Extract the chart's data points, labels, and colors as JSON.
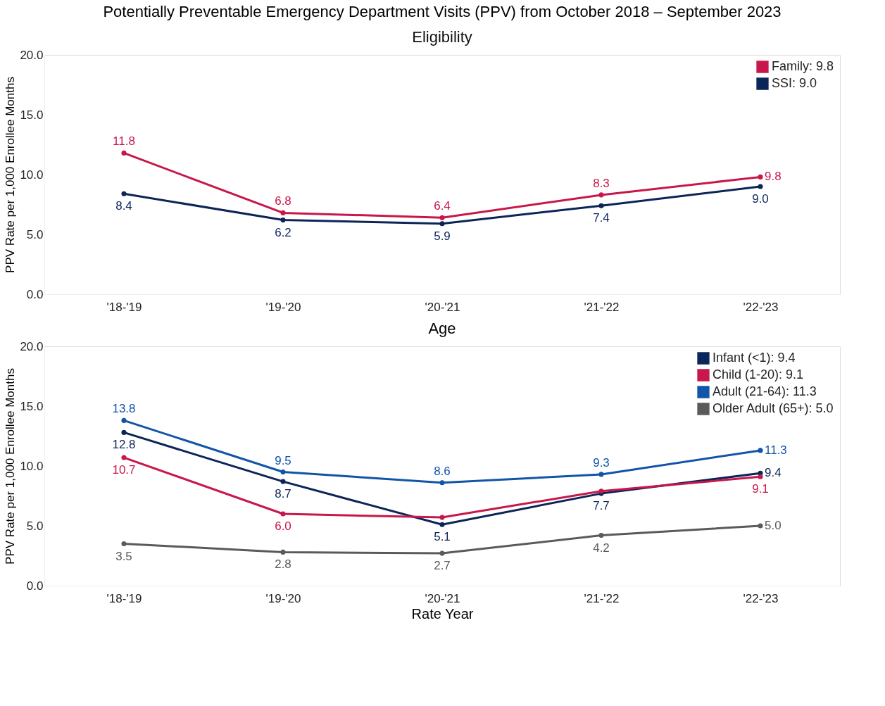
{
  "chart_data": [
    {
      "type": "line",
      "title": "Potentially Preventable Emergency Department Visits (PPV) from October 2018 – September 2023",
      "subtitle": "Eligibility",
      "ylabel": "PPV Rate per 1,000 Enrollee Months",
      "categories": [
        "'18-'19",
        "'19-'20",
        "'20-'21",
        "'21-'22",
        "'22-'23"
      ],
      "ylim": [
        0,
        20
      ],
      "yticks": [
        {
          "value": 0,
          "label": "0.0"
        },
        {
          "value": 5,
          "label": "5.0"
        },
        {
          "value": 10,
          "label": "10.0"
        },
        {
          "value": 15,
          "label": "15.0"
        },
        {
          "value": 20,
          "label": "20.0"
        }
      ],
      "grid": false,
      "legend": "top right",
      "marker": "circle",
      "line_style": "solid",
      "series": [
        {
          "name": "Family: 9.8",
          "color": "#c8174a",
          "values": [
            11.8,
            6.8,
            6.4,
            8.3,
            9.8
          ],
          "value_labels": [
            "11.8",
            "6.8",
            "6.4",
            "8.3",
            "9.8"
          ]
        },
        {
          "name": "SSI: 9.0",
          "color": "#0b2559",
          "values": [
            8.4,
            6.2,
            5.9,
            7.4,
            9.0
          ],
          "value_labels": [
            "8.4",
            "6.2",
            "5.9",
            "7.4",
            "9.0"
          ]
        }
      ]
    },
    {
      "type": "line",
      "title": "Age",
      "ylabel": "PPV Rate per 1,000 Enrollee Months",
      "xlabel": "Rate Year",
      "categories": [
        "'18-'19",
        "'19-'20",
        "'20-'21",
        "'21-'22",
        "'22-'23"
      ],
      "ylim": [
        0,
        20
      ],
      "yticks": [
        {
          "value": 0,
          "label": "0.0"
        },
        {
          "value": 5,
          "label": "5.0"
        },
        {
          "value": 10,
          "label": "10.0"
        },
        {
          "value": 15,
          "label": "15.0"
        },
        {
          "value": 20,
          "label": "20.0"
        }
      ],
      "grid": false,
      "legend": "top right",
      "marker": "circle",
      "line_style": "solid",
      "series": [
        {
          "name": "Infant (<1): 9.4",
          "color": "#0b2559",
          "values": [
            12.8,
            8.7,
            5.1,
            7.7,
            9.4
          ],
          "value_labels": [
            "12.8",
            "8.7",
            "5.1",
            "7.7",
            "9.4"
          ]
        },
        {
          "name": "Child (1-20): 9.1",
          "color": "#c8174a",
          "values": [
            10.7,
            6.0,
            5.7,
            7.9,
            9.1
          ],
          "value_labels": [
            "10.7",
            "6.0",
            null,
            null,
            "9.1"
          ]
        },
        {
          "name": "Adult (21-64): 11.3",
          "color": "#1155a8",
          "values": [
            13.8,
            9.5,
            8.6,
            9.3,
            11.3
          ],
          "value_labels": [
            "13.8",
            "9.5",
            "8.6",
            "9.3",
            "11.3"
          ]
        },
        {
          "name": "Older Adult (65+): 5.0",
          "color": "#5a5a5a",
          "values": [
            3.5,
            2.8,
            2.7,
            4.2,
            5.0
          ],
          "value_labels": [
            "3.5",
            "2.8",
            "2.7",
            "4.2",
            "5.0"
          ]
        }
      ]
    }
  ]
}
